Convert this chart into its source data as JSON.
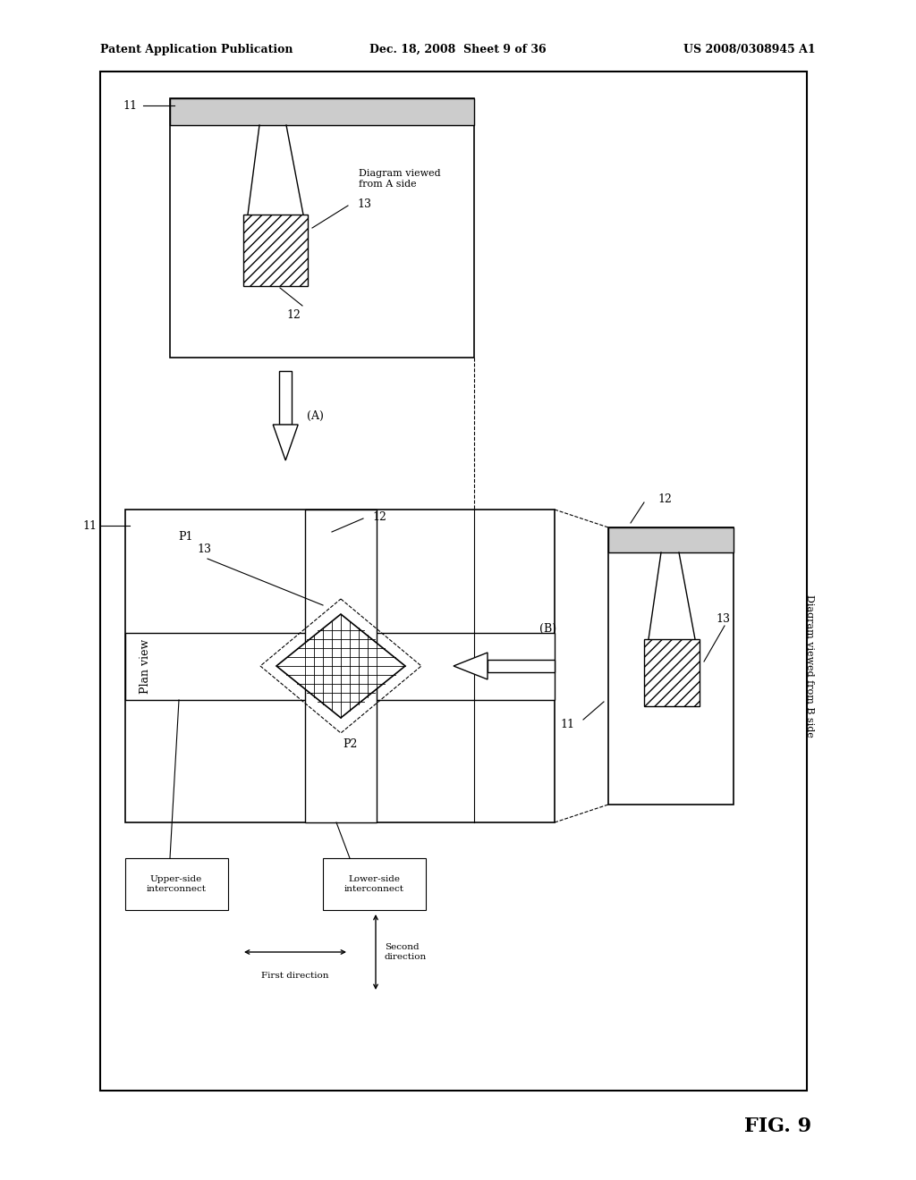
{
  "bg_color": "#ffffff",
  "line_color": "#000000",
  "header_left": "Patent Application Publication",
  "header_mid": "Dec. 18, 2008  Sheet 9 of 36",
  "header_right": "US 2008/0308945 A1",
  "fig_label": "FIG. 9",
  "label_fontsize": 9,
  "small_fontsize": 8,
  "tiny_fontsize": 7.5
}
